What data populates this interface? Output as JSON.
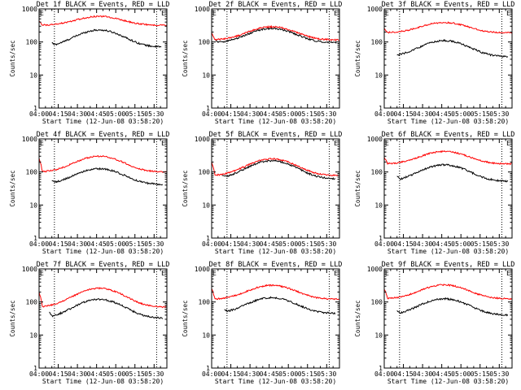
{
  "chart_data": {
    "type": "line",
    "shared_time_axis": {
      "xlabel": "Start Time (12-Jun-08 03:58:20)",
      "tick_labels": [
        "04:00",
        "04:15",
        "04:30",
        "04:45",
        "05:00",
        "05:15",
        "05:30"
      ],
      "tick_minutes": [
        0,
        15,
        30,
        45,
        60,
        75,
        90
      ],
      "xlim_minutes": [
        0,
        100
      ]
    },
    "shared_y_axis": {
      "ylabel": "Counts/sec",
      "scale": "log",
      "ylim": [
        1,
        1000
      ],
      "tick_labels": [
        "1",
        "10",
        "100",
        "1000"
      ],
      "tick_values": [
        1,
        10,
        100,
        1000
      ]
    },
    "colors": {
      "events": "#000000",
      "lld": "#ff0000",
      "axis": "#000000"
    },
    "marker": {
      "text": "E",
      "minutes": [
        0,
        95
      ]
    },
    "panels": [
      {
        "title": "Det 1f BLACK = Events, RED = LLD",
        "dotted_lines_minutes": [
          12,
          92
        ],
        "series": [
          {
            "name": "Events",
            "color": "#000000",
            "start_min": 10,
            "end_min": 96,
            "base": 70,
            "peak": 230,
            "lead_in": 95
          },
          {
            "name": "LLD",
            "color": "#ff0000",
            "start_min": 0,
            "end_min": 100,
            "base": 320,
            "peak": 600,
            "lead_in": 430
          }
        ]
      },
      {
        "title": "Det 2f BLACK = Events, RED = LLD",
        "dotted_lines_minutes": [
          12,
          92
        ],
        "series": [
          {
            "name": "Events",
            "color": "#000000",
            "start_min": 3,
            "end_min": 98,
            "base": 95,
            "peak": 255,
            "lead_in": 110
          },
          {
            "name": "LLD",
            "color": "#ff0000",
            "start_min": 0,
            "end_min": 100,
            "base": 115,
            "peak": 290,
            "lead_in": 190
          }
        ]
      },
      {
        "title": "Det 3f BLACK = Events, RED = LLD",
        "dotted_lines_minutes": [
          12,
          92
        ],
        "series": [
          {
            "name": "Events",
            "color": "#000000",
            "start_min": 10,
            "end_min": 97,
            "base": 36,
            "peak": 110,
            "lead_in": 40
          },
          {
            "name": "LLD",
            "color": "#ff0000",
            "start_min": 0,
            "end_min": 100,
            "base": 190,
            "peak": 390,
            "lead_in": 260
          }
        ]
      },
      {
        "title": "Det 4f BLACK = Events, RED = LLD",
        "dotted_lines_minutes": [
          12,
          92
        ],
        "series": [
          {
            "name": "Events",
            "color": "#000000",
            "start_min": 10,
            "end_min": 97,
            "base": 42,
            "peak": 125,
            "lead_in": 55
          },
          {
            "name": "LLD",
            "color": "#ff0000",
            "start_min": 0,
            "end_min": 100,
            "base": 100,
            "peak": 300,
            "lead_in": 260
          }
        ]
      },
      {
        "title": "Det 5f BLACK = Events, RED = LLD",
        "dotted_lines_minutes": [
          12,
          92
        ],
        "series": [
          {
            "name": "Events",
            "color": "#000000",
            "start_min": 8,
            "end_min": 97,
            "base": 62,
            "peak": 220,
            "lead_in": 80
          },
          {
            "name": "LLD",
            "color": "#ff0000",
            "start_min": 0,
            "end_min": 100,
            "base": 78,
            "peak": 250,
            "lead_in": 200
          }
        ]
      },
      {
        "title": "Det 6f BLACK = Events, RED = LLD",
        "dotted_lines_minutes": [
          12,
          92
        ],
        "series": [
          {
            "name": "Events",
            "color": "#000000",
            "start_min": 10,
            "end_min": 97,
            "base": 52,
            "peak": 165,
            "lead_in": 75
          },
          {
            "name": "LLD",
            "color": "#ff0000",
            "start_min": 0,
            "end_min": 100,
            "base": 175,
            "peak": 420,
            "lead_in": 280
          }
        ]
      },
      {
        "title": "Det 7f BLACK = Events, RED = LLD",
        "dotted_lines_minutes": [
          12,
          92
        ],
        "series": [
          {
            "name": "Events",
            "color": "#000000",
            "start_min": 8,
            "end_min": 97,
            "base": 32,
            "peak": 120,
            "lead_in": 50
          },
          {
            "name": "LLD",
            "color": "#ff0000",
            "start_min": 0,
            "end_min": 100,
            "base": 70,
            "peak": 260,
            "lead_in": 200
          }
        ]
      },
      {
        "title": "Det 8f BLACK = Events, RED = LLD",
        "dotted_lines_minutes": [
          12,
          92
        ],
        "series": [
          {
            "name": "Events",
            "color": "#000000",
            "start_min": 10,
            "end_min": 97,
            "base": 45,
            "peak": 135,
            "lead_in": 60
          },
          {
            "name": "LLD",
            "color": "#ff0000",
            "start_min": 0,
            "end_min": 100,
            "base": 120,
            "peak": 320,
            "lead_in": 250
          }
        ]
      },
      {
        "title": "Det 9f BLACK = Events, RED = LLD",
        "dotted_lines_minutes": [
          12,
          92
        ],
        "series": [
          {
            "name": "Events",
            "color": "#000000",
            "start_min": 10,
            "end_min": 97,
            "base": 40,
            "peak": 125,
            "lead_in": 55
          },
          {
            "name": "LLD",
            "color": "#ff0000",
            "start_min": 0,
            "end_min": 100,
            "base": 125,
            "peak": 330,
            "lead_in": 240
          }
        ]
      }
    ]
  }
}
